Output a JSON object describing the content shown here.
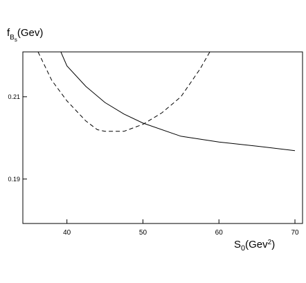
{
  "chart_data": {
    "type": "line",
    "y_label_parts": [
      "f",
      "B",
      "s",
      "(Gev)"
    ],
    "x_label_parts": [
      "S",
      "0",
      "(Gev",
      "2",
      ")"
    ],
    "xlim": [
      34.2,
      71
    ],
    "xticks": [
      40,
      50,
      60,
      70
    ],
    "ylim": [
      0.1792,
      0.2209
    ],
    "yticks": [
      0.19,
      0.21
    ],
    "series": [
      {
        "color": "#000000",
        "dashed": false,
        "x": [
          39.2,
          40,
          42.5,
          45,
          47.5,
          50,
          55,
          60,
          65,
          70
        ],
        "values": [
          0.2209,
          0.2175,
          0.2125,
          0.2086,
          0.2058,
          0.2036,
          0.2004,
          0.199,
          0.198,
          0.1969
        ]
      },
      {
        "color": "#000000",
        "dashed": true,
        "x": [
          36.2,
          38,
          40,
          42.5,
          44,
          45,
          47.5,
          50,
          52.5,
          55,
          57.5,
          58.8
        ],
        "values": [
          0.2209,
          0.214,
          0.209,
          0.2041,
          0.202,
          0.2016,
          0.2016,
          0.2033,
          0.2061,
          0.21,
          0.2167,
          0.2209
        ]
      }
    ]
  }
}
